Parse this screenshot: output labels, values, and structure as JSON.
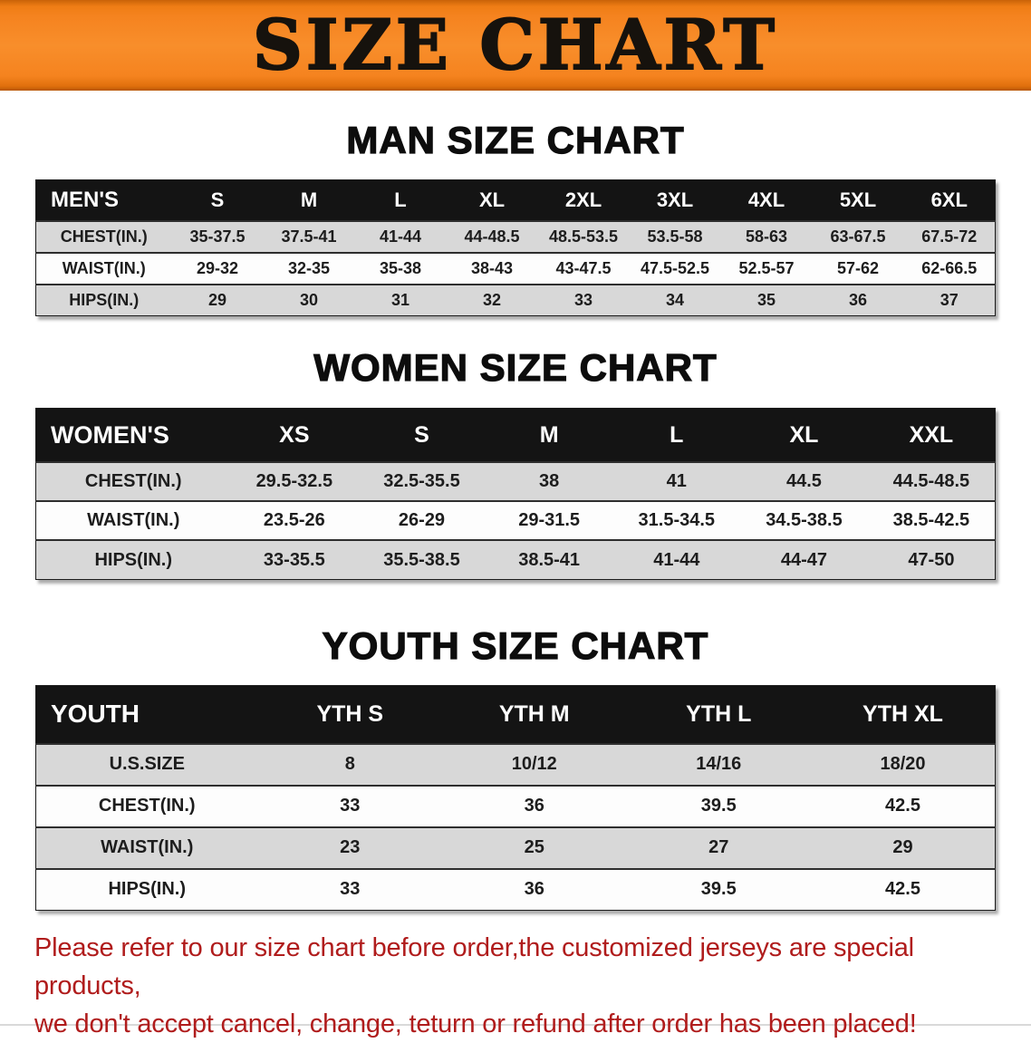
{
  "banner": {
    "title": "SIZE CHART"
  },
  "colors": {
    "banner_orange": "#f5831f",
    "header_black": "#141414",
    "row_gray": "#d8d8d8",
    "footer_red": "#b01c1c"
  },
  "sections": [
    {
      "id": "men",
      "heading": "MAN SIZE CHART",
      "table": {
        "header": [
          "MEN'S",
          "S",
          "M",
          "L",
          "XL",
          "2XL",
          "3XL",
          "4XL",
          "5XL",
          "6XL"
        ],
        "rows": [
          [
            "CHEST(IN.)",
            "35-37.5",
            "37.5-41",
            "41-44",
            "44-48.5",
            "48.5-53.5",
            "53.5-58",
            "58-63",
            "63-67.5",
            "67.5-72"
          ],
          [
            "WAIST(IN.)",
            "29-32",
            "32-35",
            "35-38",
            "38-43",
            "43-47.5",
            "47.5-52.5",
            "52.5-57",
            "57-62",
            "62-66.5"
          ],
          [
            "HIPS(IN.)",
            "29",
            "30",
            "31",
            "32",
            "33",
            "34",
            "35",
            "36",
            "37"
          ]
        ]
      }
    },
    {
      "id": "women",
      "heading": "WOMEN SIZE CHART",
      "table": {
        "header": [
          "WOMEN'S",
          "XS",
          "S",
          "M",
          "L",
          "XL",
          "XXL"
        ],
        "rows": [
          [
            "CHEST(IN.)",
            "29.5-32.5",
            "32.5-35.5",
            "38",
            "41",
            "44.5",
            "44.5-48.5"
          ],
          [
            "WAIST(IN.)",
            "23.5-26",
            "26-29",
            "29-31.5",
            "31.5-34.5",
            "34.5-38.5",
            "38.5-42.5"
          ],
          [
            "HIPS(IN.)",
            "33-35.5",
            "35.5-38.5",
            "38.5-41",
            "41-44",
            "44-47",
            "47-50"
          ]
        ]
      }
    },
    {
      "id": "youth",
      "heading": "YOUTH SIZE CHART",
      "table": {
        "header": [
          "YOUTH",
          "YTH S",
          "YTH M",
          "YTH L",
          "YTH XL"
        ],
        "rows": [
          [
            "U.S.SIZE",
            "8",
            "10/12",
            "14/16",
            "18/20"
          ],
          [
            "CHEST(IN.)",
            "33",
            "36",
            "39.5",
            "42.5"
          ],
          [
            "WAIST(IN.)",
            "23",
            "25",
            "27",
            "29"
          ],
          [
            "HIPS(IN.)",
            "33",
            "36",
            "39.5",
            "42.5"
          ]
        ]
      }
    }
  ],
  "footer": {
    "lines": [
      "Please refer to our size chart before order,the customized jerseys are special products,",
      "we don't accept cancel, change, teturn or refund after order has been placed!"
    ]
  }
}
